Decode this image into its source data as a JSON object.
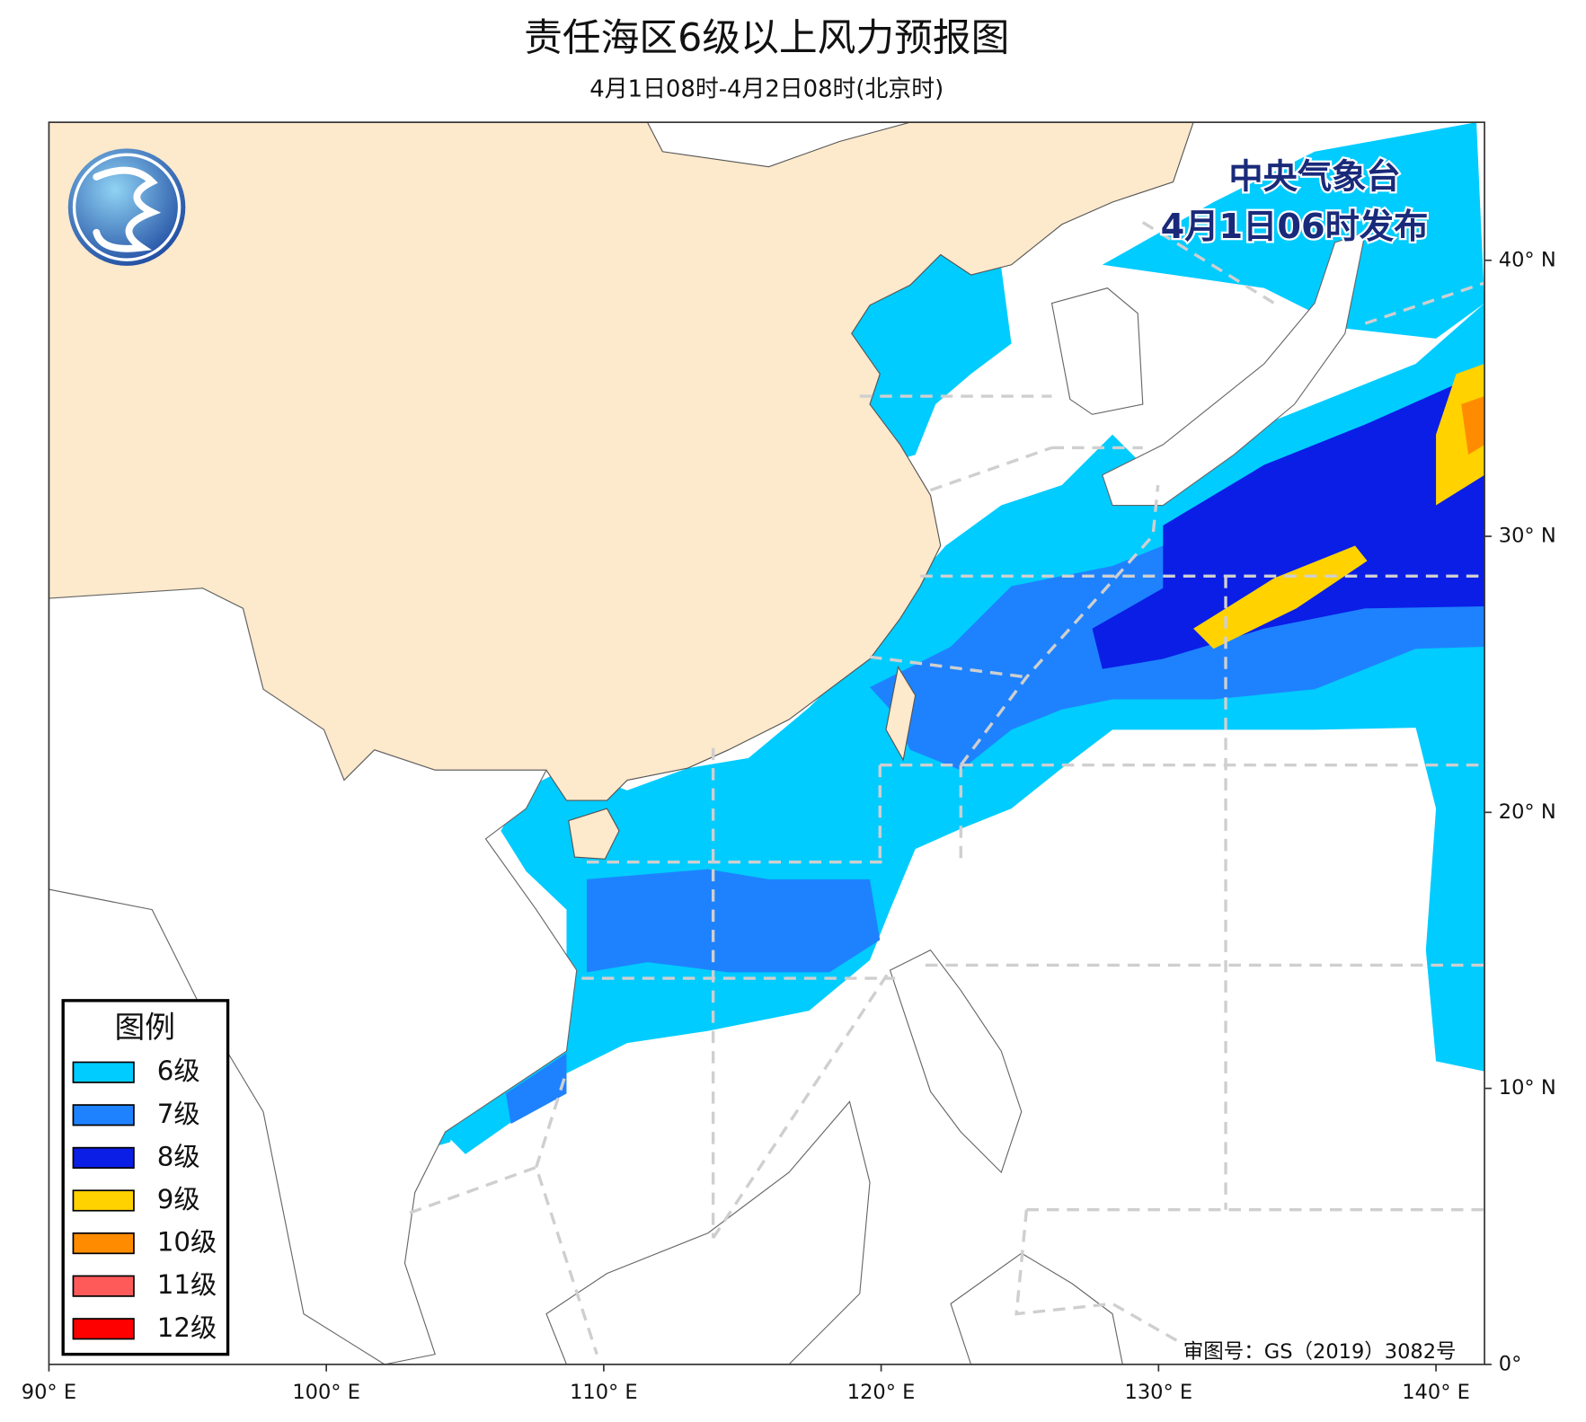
{
  "title": "责任海区6级以上风力预报图",
  "subtitle": "4月1日08时-4月2日08时(北京时)",
  "publisher": [
    "中央气象台",
    "4月1日06时发布"
  ],
  "legend": {
    "title": "图例",
    "items": [
      {
        "label": "6级",
        "color": "#00ccff"
      },
      {
        "label": "7级",
        "color": "#1e82ff"
      },
      {
        "label": "8级",
        "color": "#0a1ee6"
      },
      {
        "label": "9级",
        "color": "#ffd200"
      },
      {
        "label": "10级",
        "color": "#ff8c00"
      },
      {
        "label": "11级",
        "color": "#ff5a5a"
      },
      {
        "label": "12级",
        "color": "#ff0000"
      }
    ]
  },
  "map": {
    "xlim": [
      90,
      141.75
    ],
    "ylim": [
      0,
      45
    ],
    "xticks": [
      {
        "value": 90,
        "label": "90° E"
      },
      {
        "value": 100,
        "label": "100° E"
      },
      {
        "value": 110,
        "label": "110° E"
      },
      {
        "value": 120,
        "label": "120° E"
      },
      {
        "value": 130,
        "label": "130° E"
      },
      {
        "value": 140,
        "label": "140° E"
      }
    ],
    "yticks": [
      {
        "value": 0,
        "label": "0°"
      },
      {
        "value": 10,
        "label": "10° N"
      },
      {
        "value": 20,
        "label": "20° N"
      },
      {
        "value": 30,
        "label": "30° N"
      },
      {
        "value": 40,
        "label": "40° N"
      }
    ]
  },
  "approval": "审图号：GS（2019）3082号"
}
